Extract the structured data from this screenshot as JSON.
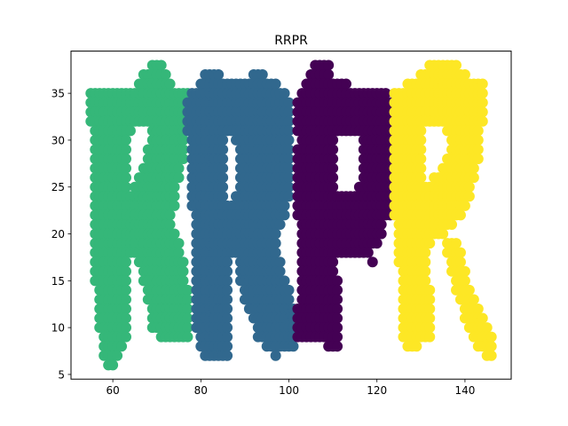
{
  "chart_data": {
    "type": "scatter",
    "title": "RRPR",
    "xlabel": "",
    "ylabel": "",
    "xlim": [
      50.5,
      150.5
    ],
    "ylim": [
      4.5,
      39.5
    ],
    "x_ticks": [
      60,
      80,
      100,
      120,
      140
    ],
    "y_ticks": [
      5,
      10,
      15,
      20,
      25,
      30,
      35
    ],
    "grid": false,
    "legend": "none",
    "series": [
      {
        "color": "#35b779",
        "rows": [
          [
            38,
            69,
            71
          ],
          [
            37,
            67,
            72
          ],
          [
            36,
            66,
            73
          ],
          [
            35,
            55,
            77
          ],
          [
            34,
            55,
            77
          ],
          [
            33,
            55,
            77
          ],
          [
            32,
            55,
            77
          ],
          [
            31,
            56,
            64
          ],
          [
            31,
            69,
            77
          ],
          [
            30,
            56,
            63
          ],
          [
            30,
            69,
            76
          ],
          [
            29,
            56,
            63
          ],
          [
            29,
            68,
            76
          ],
          [
            28,
            56,
            63
          ],
          [
            28,
            68,
            76
          ],
          [
            27,
            56,
            63
          ],
          [
            27,
            67,
            75
          ],
          [
            26,
            56,
            63
          ],
          [
            26,
            66,
            75
          ],
          [
            25,
            56,
            63
          ],
          [
            25,
            65,
            74
          ],
          [
            24,
            56,
            74
          ],
          [
            23,
            56,
            74
          ],
          [
            22,
            56,
            73
          ],
          [
            21,
            56,
            73
          ],
          [
            20,
            56,
            74
          ],
          [
            19,
            56,
            75
          ],
          [
            18,
            56,
            75
          ],
          [
            17,
            56,
            63
          ],
          [
            17,
            66,
            76
          ],
          [
            16,
            56,
            63
          ],
          [
            16,
            67,
            76
          ],
          [
            15,
            56,
            63
          ],
          [
            15,
            67,
            76
          ],
          [
            14,
            57,
            63
          ],
          [
            14,
            68,
            77
          ],
          [
            13,
            57,
            63
          ],
          [
            13,
            68,
            77
          ],
          [
            12,
            57,
            63
          ],
          [
            12,
            69,
            77
          ],
          [
            11,
            57,
            63
          ],
          [
            11,
            69,
            77
          ],
          [
            10,
            57,
            63
          ],
          [
            10,
            69,
            77
          ],
          [
            9,
            58,
            63
          ],
          [
            9,
            71,
            77
          ],
          [
            8,
            58,
            62
          ],
          [
            7,
            58,
            61
          ],
          [
            6,
            59,
            60
          ]
        ]
      },
      {
        "color": "#31688e",
        "rows": [
          [
            37,
            81,
            84
          ],
          [
            37,
            92,
            94
          ],
          [
            36,
            80,
            97
          ],
          [
            35,
            78,
            99
          ],
          [
            34,
            77,
            100
          ],
          [
            33,
            77,
            100
          ],
          [
            32,
            77,
            100
          ],
          [
            31,
            77,
            100
          ],
          [
            30,
            78,
            85
          ],
          [
            30,
            88,
            100
          ],
          [
            29,
            78,
            85
          ],
          [
            29,
            89,
            100
          ],
          [
            28,
            78,
            85
          ],
          [
            28,
            89,
            100
          ],
          [
            27,
            78,
            85
          ],
          [
            27,
            89,
            100
          ],
          [
            26,
            78,
            85
          ],
          [
            26,
            89,
            100
          ],
          [
            25,
            78,
            85
          ],
          [
            25,
            89,
            100
          ],
          [
            24,
            78,
            85
          ],
          [
            24,
            88,
            100
          ],
          [
            23,
            78,
            99
          ],
          [
            22,
            79,
            99
          ],
          [
            21,
            79,
            98
          ],
          [
            20,
            79,
            97
          ],
          [
            19,
            79,
            97
          ],
          [
            18,
            79,
            97
          ],
          [
            17,
            79,
            86
          ],
          [
            17,
            89,
            98
          ],
          [
            16,
            79,
            86
          ],
          [
            16,
            89,
            98
          ],
          [
            15,
            79,
            86
          ],
          [
            15,
            89,
            99
          ],
          [
            14,
            79,
            86
          ],
          [
            14,
            90,
            100
          ],
          [
            13,
            79,
            86
          ],
          [
            13,
            90,
            100
          ],
          [
            12,
            79,
            86
          ],
          [
            12,
            91,
            101
          ],
          [
            11,
            79,
            86
          ],
          [
            11,
            92,
            101
          ],
          [
            10,
            79,
            86
          ],
          [
            10,
            93,
            101
          ],
          [
            9,
            80,
            86
          ],
          [
            9,
            93,
            101
          ],
          [
            8,
            80,
            86
          ],
          [
            8,
            95,
            101
          ],
          [
            7,
            81,
            86
          ],
          [
            7,
            97,
            97
          ]
        ]
      },
      {
        "color": "#440154",
        "rows": [
          [
            38,
            106,
            109
          ],
          [
            37,
            105,
            109
          ],
          [
            36,
            104,
            113
          ],
          [
            35,
            103,
            122
          ],
          [
            34,
            102,
            123
          ],
          [
            33,
            102,
            123
          ],
          [
            32,
            102,
            123
          ],
          [
            31,
            102,
            123
          ],
          [
            30,
            103,
            110
          ],
          [
            30,
            117,
            123
          ],
          [
            29,
            102,
            110
          ],
          [
            29,
            117,
            123
          ],
          [
            28,
            102,
            110
          ],
          [
            28,
            117,
            123
          ],
          [
            27,
            102,
            110
          ],
          [
            27,
            117,
            123
          ],
          [
            26,
            102,
            110
          ],
          [
            26,
            117,
            123
          ],
          [
            25,
            102,
            110
          ],
          [
            25,
            116,
            123
          ],
          [
            24,
            102,
            123
          ],
          [
            23,
            102,
            123
          ],
          [
            22,
            102,
            123
          ],
          [
            21,
            103,
            121
          ],
          [
            20,
            103,
            121
          ],
          [
            19,
            103,
            120
          ],
          [
            18,
            103,
            118
          ],
          [
            17,
            103,
            110
          ],
          [
            17,
            119,
            119
          ],
          [
            16,
            103,
            110
          ],
          [
            15,
            103,
            111
          ],
          [
            14,
            103,
            111
          ],
          [
            13,
            103,
            111
          ],
          [
            12,
            102,
            111
          ],
          [
            11,
            102,
            111
          ],
          [
            10,
            102,
            111
          ],
          [
            9,
            102,
            111
          ],
          [
            8,
            109,
            111
          ]
        ]
      },
      {
        "color": "#fde725",
        "rows": [
          [
            38,
            132,
            138
          ],
          [
            37,
            130,
            140
          ],
          [
            36,
            127,
            144
          ],
          [
            35,
            124,
            144
          ],
          [
            34,
            124,
            144
          ],
          [
            33,
            124,
            144
          ],
          [
            32,
            124,
            144
          ],
          [
            31,
            124,
            130
          ],
          [
            31,
            136,
            143
          ],
          [
            30,
            124,
            130
          ],
          [
            30,
            137,
            143
          ],
          [
            29,
            124,
            130
          ],
          [
            29,
            137,
            143
          ],
          [
            28,
            124,
            130
          ],
          [
            28,
            136,
            143
          ],
          [
            27,
            124,
            130
          ],
          [
            27,
            135,
            142
          ],
          [
            26,
            124,
            130
          ],
          [
            26,
            133,
            142
          ],
          [
            25,
            124,
            141
          ],
          [
            24,
            124,
            141
          ],
          [
            23,
            124,
            140
          ],
          [
            22,
            124,
            139
          ],
          [
            21,
            125,
            137
          ],
          [
            20,
            125,
            135
          ],
          [
            19,
            125,
            132
          ],
          [
            19,
            136,
            138
          ],
          [
            18,
            125,
            131
          ],
          [
            18,
            136,
            139
          ],
          [
            17,
            125,
            131
          ],
          [
            17,
            137,
            139
          ],
          [
            16,
            126,
            131
          ],
          [
            16,
            137,
            140
          ],
          [
            15,
            126,
            131
          ],
          [
            15,
            138,
            140
          ],
          [
            14,
            126,
            132
          ],
          [
            14,
            138,
            141
          ],
          [
            13,
            126,
            132
          ],
          [
            13,
            139,
            142
          ],
          [
            12,
            126,
            132
          ],
          [
            12,
            140,
            143
          ],
          [
            11,
            126,
            132
          ],
          [
            11,
            140,
            144
          ],
          [
            10,
            126,
            132
          ],
          [
            10,
            141,
            145
          ],
          [
            9,
            126,
            132
          ],
          [
            9,
            142,
            146
          ],
          [
            8,
            127,
            129
          ],
          [
            8,
            143,
            146
          ],
          [
            7,
            145,
            146
          ]
        ]
      }
    ]
  }
}
